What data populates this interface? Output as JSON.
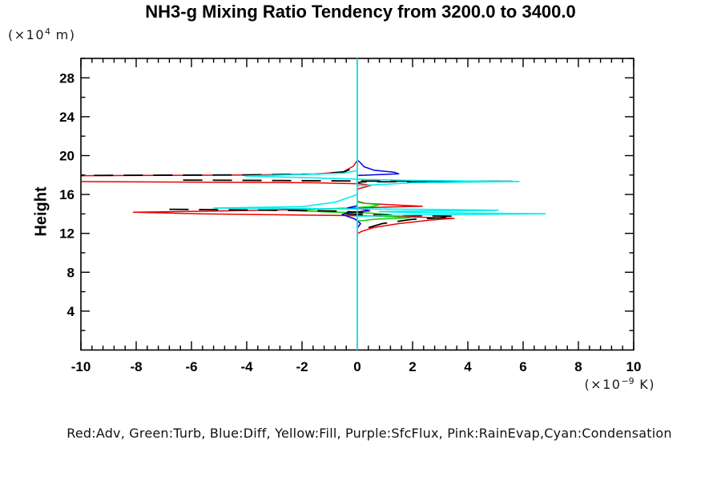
{
  "title": "NH3-g Mixing Ratio Tendency from 3200.0 to 3400.0",
  "legend": "Red:Adv, Green:Turb, Blue:Diff, Yellow:Fill, Purple:SfcFlux, Pink:RainEvap,Cyan:Condensation",
  "y_axis": {
    "title": "Height",
    "unit_pre": "(×10",
    "unit_sup": "4",
    "unit_post": " m)"
  },
  "x_axis": {
    "unit_pre": "(×10",
    "unit_sup": "−9",
    "unit_post": " K)"
  },
  "chart_data": {
    "type": "line",
    "title": "NH3-g Mixing Ratio Tendency from 3200.0 to 3400.0",
    "xlabel": "(x10^-9 K)",
    "ylabel": "Height (x10^4 m)",
    "xlim": [
      -10,
      10
    ],
    "ylim": [
      0,
      30
    ],
    "grid": false,
    "x_ticks": {
      "values": [
        -10,
        -8,
        -6,
        -4,
        -2,
        0,
        2,
        4,
        6,
        8,
        10
      ],
      "labels": [
        "-10",
        "-8",
        "-6",
        "-4",
        "-2",
        "0",
        "2",
        "4",
        "6",
        "8",
        "10"
      ]
    },
    "x_minor_step": 0.4,
    "y_ticks": {
      "values": [
        4,
        8,
        12,
        16,
        20,
        24,
        28
      ],
      "labels": [
        "4",
        "8",
        "12",
        "16",
        "20",
        "24",
        "28"
      ]
    },
    "y_minor_step": 2,
    "legend_note": "Red:Adv, Green:Turb, Blue:Diff, Yellow:Fill, Purple:SfcFlux, Pink:RainEvap,Cyan:Condensation",
    "series": [
      {
        "name": "Adv",
        "color": "#ee0000",
        "width": 1.5,
        "lines": [
          [
            [
              0,
              16.55
            ],
            [
              0.5,
              16.95
            ],
            [
              0.1,
              17.1
            ],
            [
              -1.5,
              17.2
            ],
            [
              -10.6,
              17.33
            ],
            [
              -10.6,
              17.93
            ],
            [
              -4,
              18.0
            ],
            [
              -1.5,
              18.1
            ],
            [
              -0.5,
              18.35
            ],
            [
              -0.15,
              18.9
            ],
            [
              0,
              19.5
            ],
            [
              0,
              19.8
            ]
          ],
          [
            [
              0,
              11.95
            ],
            [
              0.15,
              12.2
            ],
            [
              0.6,
              12.6
            ],
            [
              1.5,
              13.0
            ],
            [
              2.6,
              13.35
            ],
            [
              3.5,
              13.55
            ],
            [
              2.2,
              13.67
            ],
            [
              0.3,
              13.8
            ],
            [
              -2.5,
              13.9
            ],
            [
              -5.5,
              14.0
            ],
            [
              -8.1,
              14.17
            ],
            [
              -5,
              14.3
            ],
            [
              -2,
              14.45
            ],
            [
              -0.3,
              14.6
            ],
            [
              1.2,
              14.72
            ],
            [
              2.35,
              14.78
            ],
            [
              0.3,
              15.08
            ],
            [
              0,
              15.3
            ]
          ]
        ]
      },
      {
        "name": "Turb",
        "color": "#00d000",
        "width": 1.5,
        "lines": [
          [
            [
              0,
              13.25
            ],
            [
              0.6,
              13.45
            ],
            [
              1.9,
              13.6
            ],
            [
              1.4,
              13.7
            ],
            [
              0.6,
              13.8
            ],
            [
              1.15,
              13.95
            ],
            [
              0.4,
              14.1
            ],
            [
              -1.0,
              14.2
            ],
            [
              -2.35,
              14.35
            ],
            [
              -1.2,
              14.5
            ],
            [
              -0.3,
              14.6
            ],
            [
              0.5,
              14.75
            ],
            [
              0.8,
              14.95
            ],
            [
              0.2,
              15.1
            ],
            [
              0,
              15.25
            ]
          ]
        ]
      },
      {
        "name": "Diff",
        "color": "#0000e0",
        "width": 1.5,
        "lines": [
          [
            [
              0,
              17.95
            ],
            [
              1.5,
              18.12
            ],
            [
              1.35,
              18.28
            ],
            [
              0.6,
              18.5
            ],
            [
              0.25,
              18.85
            ],
            [
              0.1,
              19.3
            ],
            [
              0,
              19.55
            ]
          ],
          [
            [
              0,
              12.55
            ],
            [
              0.12,
              13.0
            ],
            [
              -0.1,
              13.5
            ],
            [
              -0.55,
              13.95
            ],
            [
              -0.3,
              14.15
            ],
            [
              0.45,
              14.32
            ],
            [
              0.2,
              14.48
            ],
            [
              -0.35,
              14.62
            ],
            [
              0,
              14.85
            ]
          ]
        ]
      },
      {
        "name": "Fill",
        "color": "#ffff00",
        "width": 1.5,
        "lines": [
          [
            [
              0,
              0
            ],
            [
              0,
              30
            ]
          ]
        ]
      },
      {
        "name": "SfcFlux",
        "color": "#aa00aa",
        "width": 1.5,
        "lines": [
          [
            [
              0,
              0
            ],
            [
              0,
              30
            ]
          ]
        ]
      },
      {
        "name": "RainEvap",
        "color": "#ff88cc",
        "width": 1.5,
        "lines": [
          [
            [
              0,
              0
            ],
            [
              0,
              30
            ]
          ]
        ]
      },
      {
        "name": "Net",
        "color": "#000000",
        "width": 1.8,
        "dash": "24 13",
        "lines": [
          [
            [
              -10.6,
              17.95
            ],
            [
              -4,
              18.02
            ],
            [
              -1.5,
              18.1
            ],
            [
              -0.5,
              18.3
            ],
            [
              -0.1,
              18.8
            ],
            [
              0,
              19.3
            ]
          ],
          [
            [
              -6.3,
              17.48
            ],
            [
              -2,
              17.42
            ],
            [
              0,
              17.38
            ],
            [
              5.6,
              17.36
            ],
            [
              0.2,
              17.3
            ],
            [
              0,
              17.2
            ]
          ],
          [
            [
              -6.8,
              14.48
            ],
            [
              -3,
              14.38
            ],
            [
              -0.8,
              14.3
            ],
            [
              0.2,
              14.15
            ],
            [
              -0.4,
              14.0
            ],
            [
              0.5,
              13.9
            ],
            [
              3.5,
              13.76
            ],
            [
              3.0,
              13.6
            ],
            [
              2.0,
              13.45
            ],
            [
              0.9,
              13.0
            ],
            [
              0.3,
              12.5
            ],
            [
              0.1,
              12.3
            ]
          ]
        ]
      },
      {
        "name": "Condensation",
        "color": "#00eeee",
        "width": 1.6,
        "lines": [
          [
            [
              0,
              0
            ],
            [
              0,
              30
            ]
          ],
          [
            [
              0,
              16.9
            ],
            [
              2.0,
              17.2
            ],
            [
              5.85,
              17.33
            ],
            [
              2.0,
              17.45
            ],
            [
              0.3,
              17.55
            ],
            [
              -1.5,
              17.7
            ],
            [
              -4.05,
              17.9
            ],
            [
              -2.0,
              18.05
            ],
            [
              -0.5,
              18.2
            ],
            [
              0,
              18.45
            ]
          ],
          [
            [
              0,
              13.75
            ],
            [
              2.0,
              13.9
            ],
            [
              6.8,
              14.02
            ],
            [
              2.0,
              14.15
            ],
            [
              0.8,
              14.25
            ],
            [
              5.1,
              14.38
            ],
            [
              2.0,
              14.48
            ],
            [
              -0.5,
              14.52
            ],
            [
              -5.2,
              14.6
            ],
            [
              -2.0,
              14.75
            ],
            [
              -0.8,
              15.2
            ],
            [
              -0.3,
              15.7
            ],
            [
              0,
              16.0
            ]
          ]
        ]
      }
    ]
  }
}
